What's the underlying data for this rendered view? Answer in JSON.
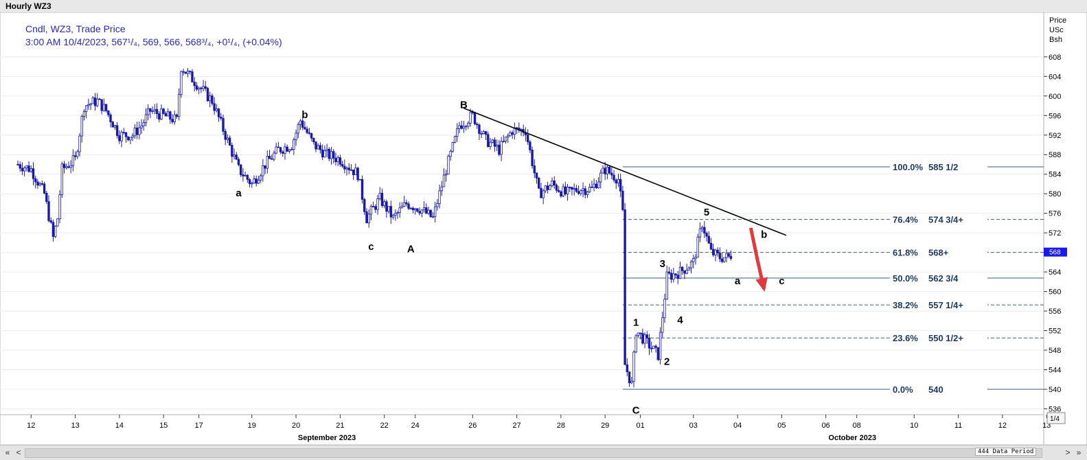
{
  "window": {
    "title": "Hourly WZ3"
  },
  "legend": {
    "line1": "Cndl, WZ3, Trade Price",
    "line2": "3:00 AM 10/4/2023, 567¹/₄, 569, 566, 568³/₄, +0¹/₄, (+0.04%)"
  },
  "axis": {
    "price_header": [
      "Price",
      "USc",
      "Bsh"
    ],
    "current_price_marker": "568",
    "scale_button": "1/4"
  },
  "footer": {
    "data_period": "444 Data Period",
    "scroll_left": "«",
    "scroll_right": "»",
    "step_left": "<",
    "step_right": ">"
  },
  "colors": {
    "candle": "#1a1aaa",
    "fib_line": "#3a5a78",
    "fib_label": "#1f3b63",
    "trendline": "#000000",
    "arrow": "#e0393e",
    "marker": "#1a1aee"
  },
  "chart_data": {
    "type": "candlestick",
    "title": "",
    "ylabel": "Price USc Bsh",
    "ylim": [
      532,
      612
    ],
    "yticks": [
      536,
      540,
      544,
      548,
      552,
      556,
      560,
      564,
      568,
      572,
      576,
      580,
      584,
      588,
      592,
      596,
      600,
      604,
      608
    ],
    "x_ticks": [
      {
        "x": 0.3,
        "label": "12"
      },
      {
        "x": 1.3,
        "label": "13"
      },
      {
        "x": 2.3,
        "label": "14"
      },
      {
        "x": 3.3,
        "label": "15"
      },
      {
        "x": 4.1,
        "label": "17"
      },
      {
        "x": 5.3,
        "label": "19"
      },
      {
        "x": 6.3,
        "label": "20"
      },
      {
        "x": 7.3,
        "label": "21"
      },
      {
        "x": 8.3,
        "label": "22"
      },
      {
        "x": 9.0,
        "label": "24"
      },
      {
        "x": 10.3,
        "label": "26"
      },
      {
        "x": 11.3,
        "label": "27"
      },
      {
        "x": 12.3,
        "label": "28"
      },
      {
        "x": 13.3,
        "label": "29"
      },
      {
        "x": 14.1,
        "label": "01"
      },
      {
        "x": 15.3,
        "label": "03"
      },
      {
        "x": 16.3,
        "label": "04"
      },
      {
        "x": 17.3,
        "label": "05"
      },
      {
        "x": 18.3,
        "label": "06"
      },
      {
        "x": 19.0,
        "label": "08"
      },
      {
        "x": 20.3,
        "label": "10"
      },
      {
        "x": 21.3,
        "label": "11"
      },
      {
        "x": 22.3,
        "label": "12"
      },
      {
        "x": 23.3,
        "label": "13"
      }
    ],
    "month_labels": [
      {
        "x": 7.0,
        "label": "September 2023"
      },
      {
        "x": 18.9,
        "label": "October 2023"
      }
    ],
    "path": [
      [
        0.0,
        586
      ],
      [
        0.3,
        585
      ],
      [
        0.6,
        580
      ],
      [
        0.8,
        571
      ],
      [
        0.9,
        575
      ],
      [
        1.0,
        585
      ],
      [
        1.3,
        587
      ],
      [
        1.5,
        598
      ],
      [
        1.8,
        599
      ],
      [
        2.0,
        597
      ],
      [
        2.3,
        592
      ],
      [
        2.6,
        592
      ],
      [
        2.8,
        594
      ],
      [
        3.0,
        597
      ],
      [
        3.3,
        596
      ],
      [
        3.6,
        595
      ],
      [
        3.7,
        606
      ],
      [
        4.1,
        602
      ],
      [
        4.4,
        599
      ],
      [
        4.7,
        592
      ],
      [
        5.0,
        585
      ],
      [
        5.3,
        582
      ],
      [
        5.6,
        586
      ],
      [
        5.9,
        589
      ],
      [
        6.2,
        590
      ],
      [
        6.4,
        595
      ],
      [
        6.7,
        590
      ],
      [
        7.0,
        588
      ],
      [
        7.3,
        587
      ],
      [
        7.7,
        584
      ],
      [
        7.9,
        575
      ],
      [
        8.2,
        579
      ],
      [
        8.5,
        575
      ],
      [
        8.8,
        578
      ],
      [
        9.1,
        577
      ],
      [
        9.4,
        575
      ],
      [
        9.7,
        585
      ],
      [
        10.0,
        594
      ],
      [
        10.3,
        596
      ],
      [
        10.6,
        591
      ],
      [
        10.9,
        589
      ],
      [
        11.2,
        593
      ],
      [
        11.5,
        593
      ],
      [
        11.8,
        580
      ],
      [
        12.1,
        582
      ],
      [
        12.4,
        580
      ],
      [
        12.7,
        581
      ],
      [
        13.0,
        581
      ],
      [
        13.3,
        585
      ],
      [
        13.6,
        583
      ],
      [
        13.7,
        576
      ],
      [
        13.75,
        545
      ],
      [
        13.9,
        541
      ],
      [
        14.0,
        552
      ],
      [
        14.3,
        549
      ],
      [
        14.5,
        547
      ],
      [
        14.7,
        563
      ],
      [
        15.0,
        564
      ],
      [
        15.3,
        566
      ],
      [
        15.5,
        574
      ],
      [
        15.7,
        568
      ],
      [
        15.9,
        567
      ],
      [
        16.1,
        567
      ],
      [
        16.2,
        568
      ]
    ],
    "wave_labels": [
      {
        "x": 5.0,
        "y": 579.5,
        "label": "a"
      },
      {
        "x": 6.5,
        "y": 595.5,
        "label": "b"
      },
      {
        "x": 8.0,
        "y": 568.5,
        "label": "c"
      },
      {
        "x": 8.9,
        "y": 568,
        "label": "A"
      },
      {
        "x": 10.1,
        "y": 597.5,
        "label": "B"
      },
      {
        "x": 14.0,
        "y": 535,
        "label": "C"
      },
      {
        "x": 14.0,
        "y": 553,
        "label": "1"
      },
      {
        "x": 14.7,
        "y": 545,
        "label": "2"
      },
      {
        "x": 14.6,
        "y": 565,
        "label": "3"
      },
      {
        "x": 15.0,
        "y": 553.5,
        "label": "4"
      },
      {
        "x": 15.6,
        "y": 575.5,
        "label": "5"
      },
      {
        "x": 16.3,
        "y": 561.5,
        "label": "a"
      },
      {
        "x": 16.9,
        "y": 571,
        "label": "b"
      },
      {
        "x": 17.3,
        "y": 561.5,
        "label": "c"
      }
    ],
    "fib_levels": [
      {
        "pct": "100.0%",
        "price": 585.5,
        "label": "585 1/2",
        "dashed": false
      },
      {
        "pct": "76.4%",
        "price": 574.75,
        "label": "574 3/4+",
        "dashed": true
      },
      {
        "pct": "61.8%",
        "price": 568,
        "label": "568+",
        "dashed": true
      },
      {
        "pct": "50.0%",
        "price": 562.75,
        "label": "562 3/4",
        "dashed": false
      },
      {
        "pct": "38.2%",
        "price": 557.25,
        "label": "557 1/4+",
        "dashed": true
      },
      {
        "pct": "23.6%",
        "price": 550.5,
        "label": "550 1/2+",
        "dashed": true
      },
      {
        "pct": "0.0%",
        "price": 540,
        "label": "540",
        "dashed": false
      }
    ],
    "trendline": {
      "from": [
        10.1,
        597.5
      ],
      "to": [
        17.4,
        571.5
      ]
    },
    "projection_arrow": [
      [
        16.6,
        573
      ],
      [
        16.75,
        566.5
      ],
      [
        16.9,
        560.5
      ]
    ]
  }
}
